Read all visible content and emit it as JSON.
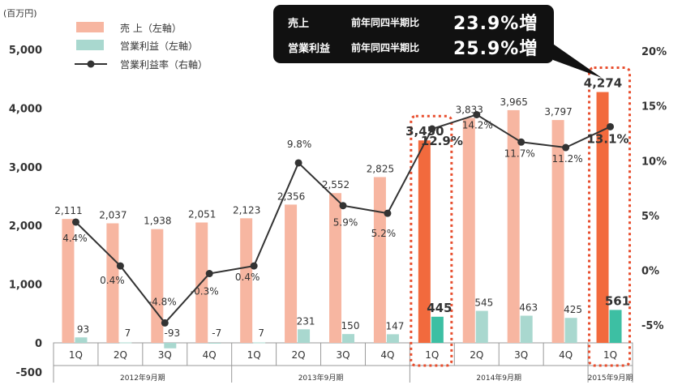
{
  "unit_label": "(百万円)",
  "callout": {
    "rows": [
      {
        "label": "売上",
        "compare": "前年同四半期比",
        "value": "23.9%増"
      },
      {
        "label": "営業利益",
        "compare": "前年同四半期比",
        "value": "25.9%増"
      }
    ]
  },
  "colors": {
    "sales": "#f7b6a1",
    "sales_highlight": "#f26a3d",
    "profit": "#a9d8cf",
    "profit_highlight": "#3dbfa3",
    "line": "#333333",
    "highlight_box": "#e84e2e",
    "grid": "#cccccc"
  },
  "chart_data": {
    "type": "bar",
    "quarters": [
      "1Q",
      "2Q",
      "3Q",
      "4Q",
      "1Q",
      "2Q",
      "3Q",
      "4Q",
      "1Q",
      "2Q",
      "3Q",
      "4Q",
      "1Q"
    ],
    "periods": [
      {
        "label": "2012年9月期",
        "start": 0,
        "end": 3
      },
      {
        "label": "2013年9月期",
        "start": 4,
        "end": 7
      },
      {
        "label": "2014年9月期",
        "start": 8,
        "end": 11
      },
      {
        "label": "2015年9月期",
        "start": 12,
        "end": 12
      }
    ],
    "series": [
      {
        "name": "売 上（左軸）",
        "axis": "left",
        "type": "bar",
        "values": [
          2111,
          2037,
          1938,
          2051,
          2123,
          2356,
          2552,
          2825,
          3450,
          3833,
          3965,
          3797,
          4274
        ],
        "labels": [
          "2,111",
          "2,037",
          "1,938",
          "2,051",
          "2,123",
          "2,356",
          "2,552",
          "2,825",
          "3,450",
          "3,833",
          "3,965",
          "3,797",
          "4,274"
        ]
      },
      {
        "name": "営業利益（左軸）",
        "axis": "left",
        "type": "bar",
        "values": [
          93,
          7,
          -93,
          -7,
          7,
          231,
          150,
          147,
          445,
          545,
          463,
          425,
          561
        ],
        "labels": [
          "93",
          "7",
          "-93",
          "-7",
          "7",
          "231",
          "150",
          "147",
          "445",
          "545",
          "463",
          "425",
          "561"
        ]
      },
      {
        "name": "営業利益率（右軸）",
        "axis": "right",
        "type": "line",
        "values": [
          4.4,
          0.4,
          -4.8,
          -0.3,
          0.4,
          9.8,
          5.9,
          5.2,
          12.9,
          14.2,
          11.7,
          11.2,
          13.1
        ],
        "labels": [
          "4.4%",
          "0.4%",
          "-4.8%",
          "-0.3%",
          "0.4%",
          "9.8%",
          "5.9%",
          "5.2%",
          "12.9%",
          "14.2%",
          "11.7%",
          "11.2%",
          "13.1%"
        ]
      }
    ],
    "highlight_indices": [
      8,
      12
    ],
    "y_left": {
      "min": -500,
      "max": 5000,
      "ticks": [
        5000,
        4000,
        3000,
        2000,
        1000,
        0,
        -500
      ],
      "tick_labels": [
        "5,000",
        "4,000",
        "3,000",
        "2,000",
        "1,000",
        "0",
        "-500"
      ]
    },
    "y_right": {
      "min": -5,
      "max": 20,
      "ticks": [
        20,
        15,
        10,
        5,
        0,
        -5
      ],
      "tick_labels": [
        "20%",
        "15%",
        "10%",
        "5%",
        "0%",
        "-5%"
      ]
    },
    "grid": false
  }
}
